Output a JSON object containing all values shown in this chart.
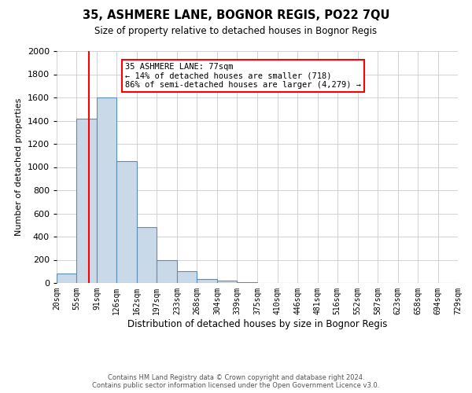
{
  "title": "35, ASHMERE LANE, BOGNOR REGIS, PO22 7QU",
  "subtitle": "Size of property relative to detached houses in Bognor Regis",
  "xlabel": "Distribution of detached houses by size in Bognor Regis",
  "ylabel": "Number of detached properties",
  "bin_edges": [
    20,
    55,
    91,
    126,
    162,
    197,
    233,
    268,
    304,
    339,
    375,
    410,
    446,
    481,
    516,
    552,
    587,
    623,
    658,
    694,
    729
  ],
  "bin_heights": [
    80,
    1420,
    1600,
    1050,
    480,
    200,
    105,
    35,
    20,
    10,
    0,
    0,
    0,
    0,
    0,
    0,
    0,
    0,
    0,
    0
  ],
  "bar_color": "#c9d9e8",
  "bar_edge_color": "#5b8db8",
  "vline_x": 77,
  "vline_color": "red",
  "ylim": [
    0,
    2000
  ],
  "yticks": [
    0,
    200,
    400,
    600,
    800,
    1000,
    1200,
    1400,
    1600,
    1800,
    2000
  ],
  "tick_labels": [
    "20sqm",
    "55sqm",
    "91sqm",
    "126sqm",
    "162sqm",
    "197sqm",
    "233sqm",
    "268sqm",
    "304sqm",
    "339sqm",
    "375sqm",
    "410sqm",
    "446sqm",
    "481sqm",
    "516sqm",
    "552sqm",
    "587sqm",
    "623sqm",
    "658sqm",
    "694sqm",
    "729sqm"
  ],
  "annotation_box_text": [
    "35 ASHMERE LANE: 77sqm",
    "← 14% of detached houses are smaller (718)",
    "86% of semi-detached houses are larger (4,279) →"
  ],
  "footer_line1": "Contains HM Land Registry data © Crown copyright and database right 2024.",
  "footer_line2": "Contains public sector information licensed under the Open Government Licence v3.0.",
  "bg_color": "#ffffff",
  "grid_color": "#cccccc"
}
